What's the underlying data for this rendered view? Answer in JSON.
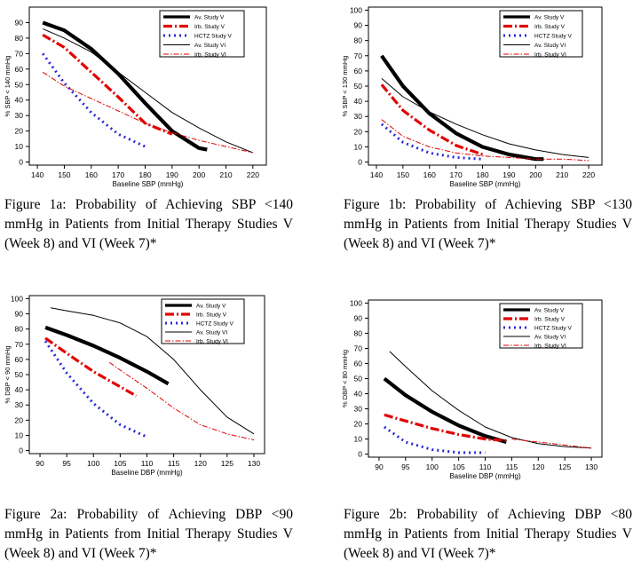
{
  "chart_data": [
    {
      "type": "line",
      "caption": "Figure 1a: Probability of Achieving SBP <140 mmHg in Patients from Initial Therapy Studies V (Week 8) and VI (Week 7)*",
      "xlabel": "Baseline SBP (mmHg)",
      "ylabel": "% SBP < 140 mmHg",
      "xlim": [
        137,
        225
      ],
      "ylim": [
        -2,
        100
      ],
      "xticks": [
        140,
        150,
        160,
        170,
        180,
        190,
        200,
        210,
        220
      ],
      "yticks": [
        0,
        10,
        20,
        30,
        40,
        50,
        60,
        70,
        80,
        90
      ],
      "legend": [
        "Av. Study V",
        "Irb. Study V",
        "HCTZ Study V",
        "Av. Study VI",
        "Irb. Study VI"
      ],
      "series": [
        {
          "name": "Av. Study V",
          "x": [
            142,
            150,
            160,
            170,
            180,
            190,
            200,
            203
          ],
          "y": [
            90,
            85,
            73,
            57,
            38,
            20,
            9,
            8
          ]
        },
        {
          "name": "Irb. Study V",
          "x": [
            142,
            150,
            160,
            170,
            180,
            190
          ],
          "y": [
            82,
            74,
            58,
            42,
            25,
            18
          ]
        },
        {
          "name": "HCTZ Study V",
          "x": [
            142,
            150,
            160,
            170,
            180
          ],
          "y": [
            70,
            51,
            32,
            18,
            10
          ]
        },
        {
          "name": "Av. Study VI",
          "x": [
            142,
            150,
            160,
            170,
            180,
            190,
            200,
            210,
            220
          ],
          "y": [
            86,
            80,
            71,
            58,
            45,
            32,
            22,
            13,
            6
          ]
        },
        {
          "name": "Irb. Study VI",
          "x": [
            142,
            150,
            160,
            170,
            180,
            190,
            200,
            210,
            220
          ],
          "y": [
            58,
            49,
            41,
            33,
            25,
            19,
            14,
            10,
            6
          ]
        }
      ]
    },
    {
      "type": "line",
      "caption": "Figure 1b: Probability of Achieving SBP <130 mmHg in Patients from Initial Therapy Studies V (Week 8) and VI (Week 7)*",
      "xlabel": "Baseline SBP (mmHg)",
      "ylabel": "% SBP < 130 mmHg",
      "xlim": [
        137,
        225
      ],
      "ylim": [
        -2,
        102
      ],
      "xticks": [
        140,
        150,
        160,
        170,
        180,
        190,
        200,
        210,
        220
      ],
      "yticks": [
        0,
        10,
        20,
        30,
        40,
        50,
        60,
        70,
        80,
        90,
        100
      ],
      "legend": [
        "Av. Study V",
        "Irb. Study V",
        "HCTZ Study V",
        "Av. Study VI",
        "Irb. Study VI"
      ],
      "series": [
        {
          "name": "Av. Study V",
          "x": [
            142,
            150,
            160,
            170,
            180,
            190,
            200,
            203
          ],
          "y": [
            70,
            50,
            32,
            19,
            10,
            5,
            2,
            2
          ]
        },
        {
          "name": "Irb. Study V",
          "x": [
            142,
            150,
            160,
            170,
            180
          ],
          "y": [
            51,
            34,
            21,
            11,
            5
          ]
        },
        {
          "name": "HCTZ Study V",
          "x": [
            142,
            150,
            160,
            170,
            180
          ],
          "y": [
            25,
            13,
            6,
            3,
            2
          ]
        },
        {
          "name": "Av. Study VI",
          "x": [
            142,
            150,
            160,
            170,
            180,
            190,
            200,
            210,
            220
          ],
          "y": [
            55,
            43,
            33,
            25,
            18,
            12,
            8,
            5,
            3
          ]
        },
        {
          "name": "Irb. Study VI",
          "x": [
            142,
            150,
            160,
            170,
            180,
            190,
            200,
            210,
            220
          ],
          "y": [
            28,
            17,
            10,
            6,
            4,
            3,
            2,
            2,
            1
          ]
        }
      ]
    },
    {
      "type": "line",
      "caption": "Figure 2a: Probability of Achieving DBP <90 mmHg in Patients from Initial Therapy Studies V (Week 8) and VI (Week 7)*",
      "xlabel": "Baseline DBP (mmHg)",
      "ylabel": "% DBP < 90 mmHg",
      "xlim": [
        88,
        132
      ],
      "ylim": [
        -2,
        102
      ],
      "xticks": [
        90,
        95,
        100,
        105,
        110,
        115,
        120,
        125,
        130
      ],
      "yticks": [
        0,
        10,
        20,
        30,
        40,
        50,
        60,
        70,
        80,
        90,
        100
      ],
      "legend": [
        "Av. Study V",
        "Irb. Study V",
        "HCTZ Study V",
        "Av. Study VI",
        "Irb. Study VI"
      ],
      "series": [
        {
          "name": "Av. Study V",
          "x": [
            91,
            95,
            100,
            105,
            110,
            114
          ],
          "y": [
            81,
            76,
            69,
            61,
            52,
            44
          ]
        },
        {
          "name": "Irb. Study V",
          "x": [
            91,
            95,
            100,
            105,
            108
          ],
          "y": [
            74,
            64,
            52,
            42,
            36
          ]
        },
        {
          "name": "HCTZ Study V",
          "x": [
            91,
            95,
            100,
            105,
            110
          ],
          "y": [
            72,
            51,
            31,
            17,
            9
          ]
        },
        {
          "name": "Av. Study VI",
          "x": [
            92,
            95,
            100,
            105,
            110,
            115,
            120,
            125,
            130
          ],
          "y": [
            94,
            92,
            89,
            84,
            75,
            60,
            40,
            22,
            11
          ]
        },
        {
          "name": "Irb. Study VI",
          "x": [
            103,
            105,
            110,
            115,
            120,
            125,
            130
          ],
          "y": [
            58,
            53,
            41,
            28,
            17,
            11,
            7
          ]
        }
      ]
    },
    {
      "type": "line",
      "caption": "Figure 2b: Probability of Achieving DBP <80 mmHg in Patients from Initial Therapy Studies V (Week 8) and VI (Week 7)*",
      "xlabel": "Baseline DBP (mmHg)",
      "ylabel": "% DBP < 80 mmHg",
      "xlim": [
        88,
        132
      ],
      "ylim": [
        -2,
        102
      ],
      "xticks": [
        90,
        95,
        100,
        105,
        110,
        115,
        120,
        125,
        130
      ],
      "yticks": [
        0,
        10,
        20,
        30,
        40,
        50,
        60,
        70,
        80,
        90,
        100
      ],
      "legend": [
        "Av. Study V",
        "Irb. Study V",
        "HCTZ Study V",
        "Av. Study VI",
        "Irb. Study VI"
      ],
      "series": [
        {
          "name": "Av. Study V",
          "x": [
            91,
            95,
            100,
            105,
            110,
            114
          ],
          "y": [
            50,
            39,
            28,
            19,
            12,
            8
          ]
        },
        {
          "name": "Irb. Study V",
          "x": [
            91,
            95,
            100,
            105,
            110,
            114
          ],
          "y": [
            26,
            22,
            17,
            13,
            10,
            9
          ]
        },
        {
          "name": "HCTZ Study V",
          "x": [
            91,
            95,
            100,
            105,
            110
          ],
          "y": [
            18,
            8,
            3,
            1,
            1
          ]
        },
        {
          "name": "Av. Study VI",
          "x": [
            92,
            95,
            100,
            105,
            110,
            115,
            120,
            125,
            130
          ],
          "y": [
            68,
            58,
            42,
            29,
            18,
            11,
            7,
            5,
            4
          ]
        },
        {
          "name": "Irb. Study VI",
          "x": [
            115,
            120,
            125,
            130
          ],
          "y": [
            10,
            8,
            6,
            4
          ]
        }
      ]
    }
  ]
}
